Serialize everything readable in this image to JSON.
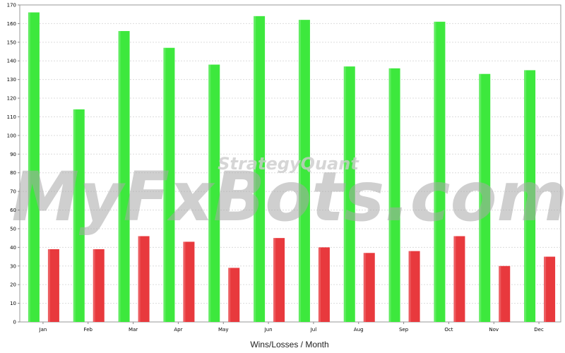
{
  "chart_data": {
    "type": "bar",
    "categories": [
      "Jan",
      "Feb",
      "Mar",
      "Apr",
      "May",
      "Jun",
      "Jul",
      "Aug",
      "Sep",
      "Oct",
      "Nov",
      "Dec"
    ],
    "series": [
      {
        "color": "#3de83d",
        "values": [
          166,
          114,
          156,
          147,
          138,
          164,
          162,
          137,
          136,
          161,
          133,
          135
        ]
      },
      {
        "color": "#e8393d",
        "values": [
          39,
          39,
          46,
          43,
          29,
          45,
          40,
          37,
          38,
          46,
          30,
          35
        ]
      }
    ],
    "title": "",
    "xlabel": "Wins/Losses / Month",
    "ylabel": "",
    "ylim": [
      0,
      170
    ],
    "yticks": [
      0,
      10,
      20,
      30,
      40,
      50,
      60,
      70,
      80,
      90,
      100,
      110,
      120,
      130,
      140,
      150,
      160,
      170
    ],
    "grid": true,
    "legend": "none"
  },
  "watermark": {
    "main": "MyFxBots.com",
    "sub": "StrategyQuant"
  }
}
